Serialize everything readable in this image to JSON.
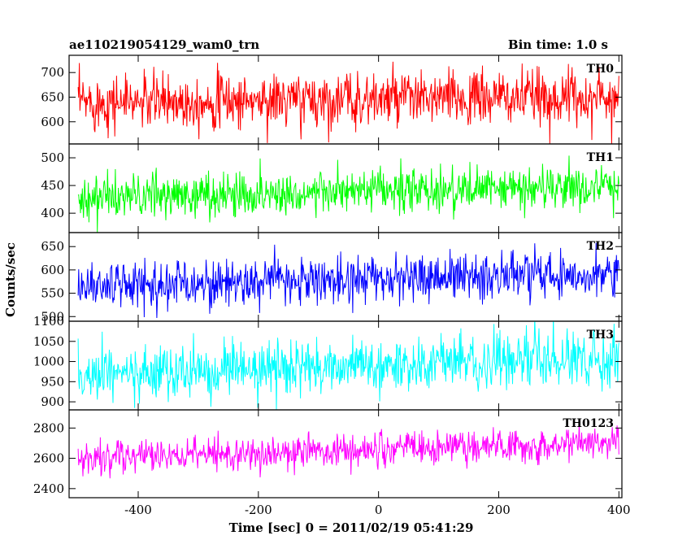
{
  "chart_data": {
    "type": "line",
    "title": "ae110219054129_wam0_trn",
    "subtitle": "Bin time: 1.0 s",
    "xlabel": "Time [sec] 0 = 2011/02/19 05:41:29",
    "ylabel": "Counts/sec",
    "xlim": [
      -515,
      405
    ],
    "xticks": [
      "-400",
      "-200",
      "0",
      "200",
      "400"
    ],
    "xtick_values": [
      -400,
      -200,
      0,
      200,
      400
    ],
    "bin_time_s": 1.0,
    "t_range": [
      -500,
      400
    ],
    "grid": false,
    "series": [
      {
        "name": "TH0",
        "color": "#ff0000",
        "ylim": [
          555,
          735
        ],
        "yticks": [
          "600",
          "650",
          "700"
        ],
        "ytick_values": [
          600,
          650,
          700
        ],
        "mean_start": 640,
        "mean_end": 650,
        "sigma": 28
      },
      {
        "name": "TH1",
        "color": "#00ff00",
        "ylim": [
          365,
          525
        ],
        "yticks": [
          "400",
          "450",
          "500"
        ],
        "ytick_values": [
          400,
          450,
          500
        ],
        "mean_start": 428,
        "mean_end": 448,
        "sigma": 20
      },
      {
        "name": "TH2",
        "color": "#0000ff",
        "ylim": [
          490,
          680
        ],
        "yticks": [
          "500",
          "550",
          "600",
          "650"
        ],
        "ytick_values": [
          500,
          550,
          600,
          650
        ],
        "mean_start": 565,
        "mean_end": 595,
        "sigma": 25
      },
      {
        "name": "TH3",
        "color": "#00ffff",
        "ylim": [
          880,
          1100
        ],
        "yticks": [
          "900",
          "950",
          "1000",
          "1050",
          "1100"
        ],
        "ytick_values": [
          900,
          950,
          1000,
          1050,
          1100
        ],
        "mean_start": 965,
        "mean_end": 1010,
        "sigma": 32
      },
      {
        "name": "TH0123",
        "color": "#ff00ff",
        "ylim": [
          2340,
          2920
        ],
        "yticks": [
          "2400",
          "2600",
          "2800"
        ],
        "ytick_values": [
          2400,
          2600,
          2800
        ],
        "mean_start": 2595,
        "mean_end": 2710,
        "sigma": 55
      }
    ]
  }
}
